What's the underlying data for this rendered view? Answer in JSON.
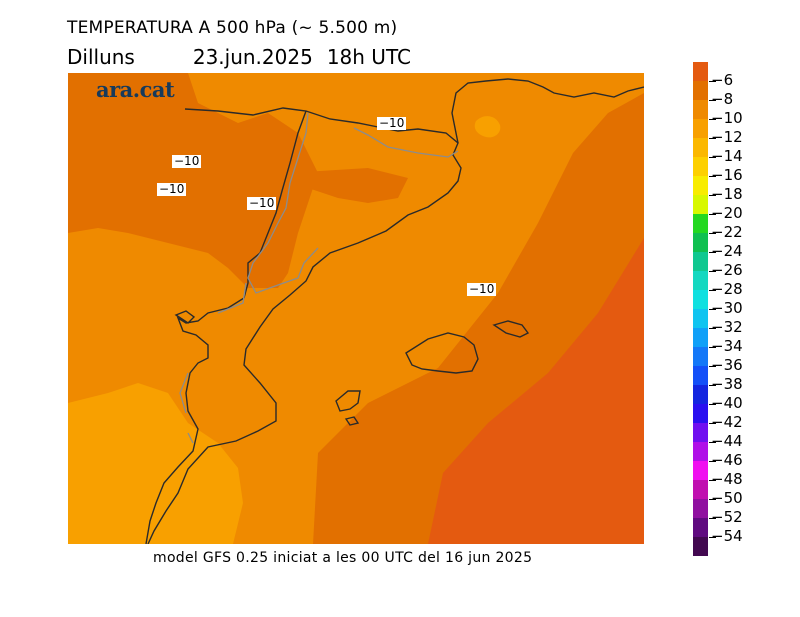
{
  "title": {
    "line1": "TEMPERATURA A 500 hPa (~ 5.500 m)",
    "day": "Dilluns",
    "date": "23.jun.2025",
    "time": "18h UTC"
  },
  "footer": "model GFS 0.25 iniciat a les 00 UTC del 16 jun 2025",
  "logo": "ara.cat",
  "isotherm_labels": [
    "−10",
    "−10",
    "−10",
    "−10",
    "−10"
  ],
  "legend": {
    "labels": [
      "−6",
      "−8",
      "−10",
      "−12",
      "−14",
      "−16",
      "−18",
      "−20",
      "−22",
      "−24",
      "−26",
      "−28",
      "−30",
      "−32",
      "−34",
      "−36",
      "−38",
      "−40",
      "−42",
      "−44",
      "−46",
      "−48",
      "−50",
      "−52",
      "−54"
    ],
    "colors": [
      "#e45a10",
      "#e27000",
      "#ef8a00",
      "#f8a000",
      "#fbb800",
      "#fdd000",
      "#f8ec00",
      "#d8f800",
      "#24d820",
      "#10c050",
      "#10c890",
      "#14d8c0",
      "#10e0e0",
      "#10c4f0",
      "#10a0f8",
      "#1478f8",
      "#1450f8",
      "#1426e0",
      "#2a10f0",
      "#7010f0",
      "#b010e8",
      "#f010f0",
      "#c010b0",
      "#9010a0",
      "#600a80",
      "#420850"
    ]
  },
  "colors": {
    "band_minus10": "#ef8a00",
    "band_minus8": "#e27000",
    "band_minus6": "#e45a10",
    "band_minus12": "#f8a000",
    "border": "#2a2a2a",
    "admin_border": "#8c8c8c"
  }
}
